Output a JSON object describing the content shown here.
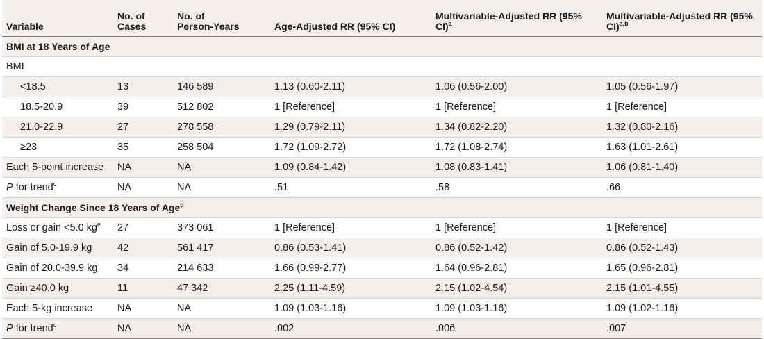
{
  "table": {
    "headers": [
      "Variable",
      "No. of\nCases",
      "No. of\nPerson-Years",
      "Age-Adjusted RR (95% CI)",
      "Multivariable-Adjusted RR (95%\nCI)",
      "Multivariable-Adjusted RR (95%\nCI)"
    ],
    "header_sups": [
      "",
      "",
      "",
      "",
      "a",
      "a,b"
    ],
    "rows": [
      {
        "cells": [
          "BMI at 18 Years of Age",
          "",
          "",
          "",
          "",
          ""
        ],
        "sup": "",
        "section": true,
        "shade": true,
        "indent": false
      },
      {
        "cells": [
          "BMI",
          "",
          "",
          "",
          "",
          ""
        ],
        "sup": "",
        "section": false,
        "shade": false,
        "indent": false
      },
      {
        "cells": [
          "<18.5",
          "13",
          "146 589",
          "1.13 (0.60-2.11)",
          "1.06 (0.56-2.00)",
          "1.05 (0.56-1.97)"
        ],
        "sup": "",
        "section": false,
        "shade": true,
        "indent": true
      },
      {
        "cells": [
          "18.5-20.9",
          "39",
          "512 802",
          "1 [Reference]",
          "1 [Reference]",
          "1 [Reference]"
        ],
        "sup": "",
        "section": false,
        "shade": false,
        "indent": true
      },
      {
        "cells": [
          "21.0-22.9",
          "27",
          "278 558",
          "1.29 (0.79-2.11)",
          "1.34 (0.82-2.20)",
          "1.32 (0.80-2.16)"
        ],
        "sup": "",
        "section": false,
        "shade": true,
        "indent": true
      },
      {
        "cells": [
          "≥23",
          "35",
          "258 504",
          "1.72 (1.09-2.72)",
          "1.72 (1.08-2.74)",
          "1.63 (1.01-2.61)"
        ],
        "sup": "",
        "section": false,
        "shade": false,
        "indent": true
      },
      {
        "cells": [
          "Each 5-point increase",
          "NA",
          "NA",
          "1.09 (0.84-1.42)",
          "1.08 (0.83-1.41)",
          "1.06 (0.81-1.40)"
        ],
        "sup": "",
        "section": false,
        "shade": true,
        "indent": false
      },
      {
        "cells": [
          " for trend",
          "NA",
          "NA",
          ".51",
          ".58",
          ".66"
        ],
        "italic_prefix": "P",
        "sup": "c",
        "section": false,
        "shade": false,
        "indent": false
      },
      {
        "cells": [
          "Weight Change Since 18 Years of Age",
          "",
          "",
          "",
          "",
          ""
        ],
        "sup": "d",
        "section": true,
        "shade": true,
        "indent": false
      },
      {
        "cells": [
          "Loss or gain <5.0 kg",
          "27",
          "373 061",
          "1 [Reference]",
          "1 [Reference]",
          "1 [Reference]"
        ],
        "sup": "e",
        "section": false,
        "shade": false,
        "indent": false
      },
      {
        "cells": [
          "Gain of 5.0-19.9 kg",
          "42",
          "561 417",
          "0.86 (0.53-1.41)",
          "0.86 (0.52-1.42)",
          "0.86 (0.52-1.43)"
        ],
        "sup": "",
        "section": false,
        "shade": true,
        "indent": false
      },
      {
        "cells": [
          "Gain of 20.0-39.9 kg",
          "34",
          "214 633",
          "1.66 (0.99-2.77)",
          "1.64 (0.96-2.81)",
          "1.65 (0.96-2.81)"
        ],
        "sup": "",
        "section": false,
        "shade": false,
        "indent": false
      },
      {
        "cells": [
          "Gain ≥40.0 kg",
          "11",
          "47 342",
          "2.25 (1.11-4.59)",
          "2.15 (1.02-4.54)",
          "2.15 (1.01-4.55)"
        ],
        "sup": "",
        "section": false,
        "shade": true,
        "indent": false
      },
      {
        "cells": [
          "Each 5-kg increase",
          "NA",
          "NA",
          "1.09 (1.03-1.16)",
          "1.09 (1.03-1.16)",
          "1.09 (1.02-1.16)"
        ],
        "sup": "",
        "section": false,
        "shade": false,
        "indent": false
      },
      {
        "cells": [
          " for trend",
          "NA",
          "NA",
          ".002",
          ".006",
          ".007"
        ],
        "italic_prefix": "P",
        "sup": "c",
        "section": false,
        "shade": true,
        "indent": false
      }
    ]
  }
}
